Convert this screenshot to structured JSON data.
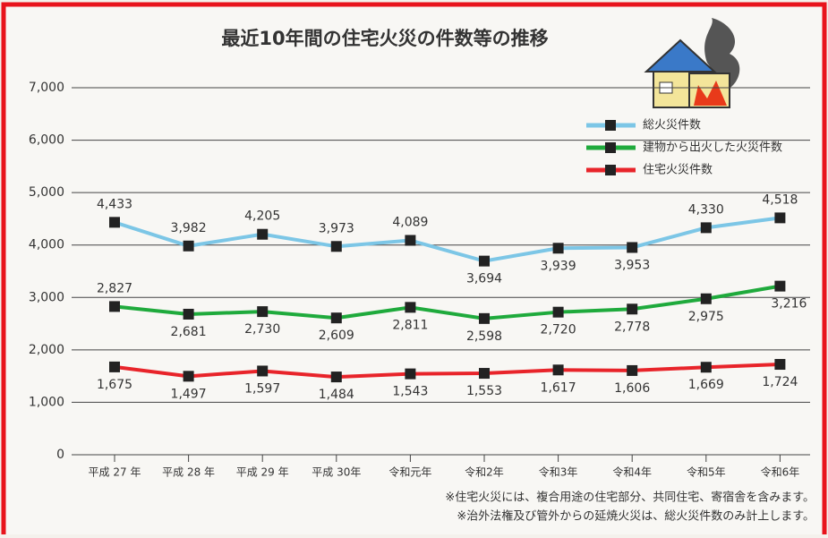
{
  "chart_data": {
    "type": "line",
    "title": "最近10年間の住宅火災の件数等の推移",
    "categories": [
      "平成 27 年",
      "平成 28 年",
      "平成 29 年",
      "平成 30年",
      "令和元年",
      "令和2年",
      "令和3年",
      "令和4年",
      "令和5年",
      "令和6年"
    ],
    "series": [
      {
        "name": "総火災件数",
        "color": "#7cc6e6",
        "values": [
          4433,
          3982,
          4205,
          3973,
          4089,
          3694,
          3939,
          3953,
          4330,
          4518
        ],
        "value_labels": [
          "4,433",
          "3,982",
          "4,205",
          "3,973",
          "4,089",
          "3,694",
          "3,939",
          "3,953",
          "4,330",
          "4,518"
        ]
      },
      {
        "name": "建物から出火した火災件数",
        "color": "#1faa3c",
        "values": [
          2827,
          2681,
          2730,
          2609,
          2811,
          2598,
          2720,
          2778,
          2975,
          3216
        ],
        "value_labels": [
          "2,827",
          "2,681",
          "2,730",
          "2,609",
          "2,811",
          "2,598",
          "2,720",
          "2,778",
          "2,975",
          "3,216"
        ]
      },
      {
        "name": "住宅火災件数",
        "color": "#e8242a",
        "values": [
          1675,
          1497,
          1597,
          1484,
          1543,
          1553,
          1617,
          1606,
          1669,
          1724
        ],
        "value_labels": [
          "1,675",
          "1,497",
          "1,597",
          "1,484",
          "1,543",
          "1,553",
          "1,617",
          "1,606",
          "1,669",
          "1,724"
        ]
      }
    ],
    "ylim": [
      0,
      7000
    ],
    "yticks": [
      0,
      {
        "value": 1000,
        "label": "1,000"
      },
      {
        "value": 2000,
        "label": "2,000"
      },
      {
        "value": 3000,
        "label": "3,000"
      },
      {
        "value": 4000,
        "label": "4,000"
      },
      {
        "value": 5000,
        "label": "5,000"
      },
      {
        "value": 6000,
        "label": "6,000"
      },
      {
        "value": 7000,
        "label": "7,000"
      }
    ],
    "grid": true,
    "legend": "upper right",
    "notes": [
      "※住宅火災には、複合用途の住宅部分、共同住宅、寄宿舎を含みます。",
      "※治外法権及び管外からの延焼火災は、総火災件数のみ計上します。"
    ]
  }
}
